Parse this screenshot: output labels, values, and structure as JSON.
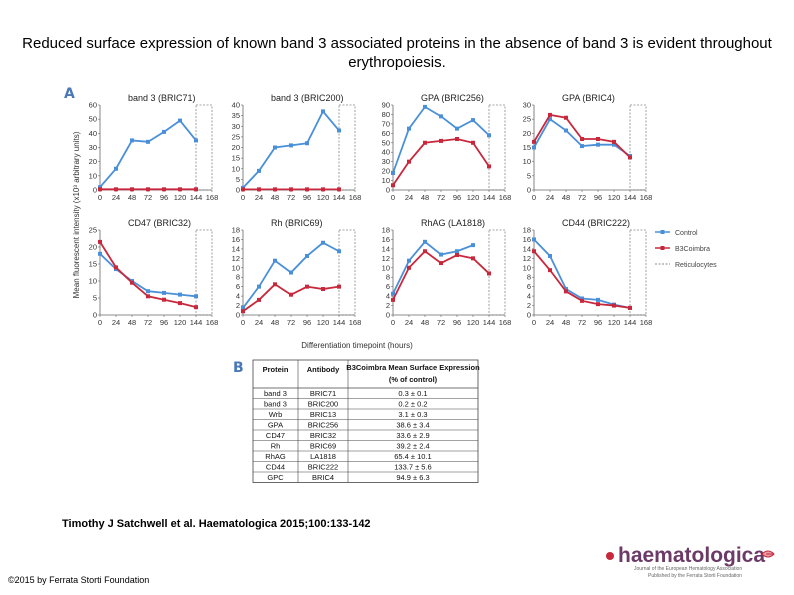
{
  "title": "Reduced surface expression of known band 3 associated proteins in the absence of band 3 is evident throughout erythropoiesis.",
  "citation": "Timothy J Satchwell et al. Haematologica 2015;100:133-142",
  "copyright": "©2015 by Ferrata Storti Foundation",
  "logo": {
    "text": "haematologica",
    "tagline_line1": "Journal of the European Hematology Association",
    "tagline_line2": "Published by the Ferrata Storti Foundation"
  },
  "colors": {
    "control": "#4a90d9",
    "b3coimbra": "#c8283c",
    "reticulocyte_box": "#888888",
    "panel_letter": "#4a77b8"
  },
  "panel_a_label": "A",
  "panel_b_label": "B",
  "chart_data": {
    "type": "line",
    "ylabel": "Mean fluorescent intensity (x10³ arbitrary units)",
    "xlabel": "Differentiation timepoint (hours)",
    "x": [
      0,
      24,
      48,
      72,
      96,
      120,
      144
    ],
    "xticks": [
      "0",
      "24",
      "48",
      "72",
      "96",
      "120",
      "144",
      "168"
    ],
    "legend": {
      "position": "right",
      "entries": [
        "Control",
        "B3Coimbra",
        "Reticulocytes"
      ]
    },
    "panels": [
      {
        "title": "band 3 (BRIC71)",
        "ylim": [
          0,
          60
        ],
        "yticks": [
          0,
          10,
          20,
          30,
          40,
          50,
          60
        ],
        "series": [
          {
            "name": "Control",
            "values": [
              2,
              15,
              35,
              34,
              41,
              49,
              35
            ]
          },
          {
            "name": "B3Coimbra",
            "values": [
              0.5,
              0.5,
              0.5,
              0.5,
              0.5,
              0.5,
              0.5
            ]
          }
        ]
      },
      {
        "title": "band 3 (BRIC200)",
        "ylim": [
          0,
          40
        ],
        "yticks": [
          0,
          5,
          10,
          15,
          20,
          25,
          30,
          35,
          40
        ],
        "series": [
          {
            "name": "Control",
            "values": [
              1,
              9,
              20,
              21,
              22,
              37,
              28
            ]
          },
          {
            "name": "B3Coimbra",
            "values": [
              0.3,
              0.3,
              0.3,
              0.3,
              0.3,
              0.3,
              0.3
            ]
          }
        ]
      },
      {
        "title": "GPA (BRIC256)",
        "ylim": [
          0,
          90
        ],
        "yticks": [
          0,
          10,
          20,
          30,
          40,
          50,
          60,
          70,
          80,
          90
        ],
        "series": [
          {
            "name": "Control",
            "values": [
              18,
              65,
              88,
              78,
              65,
              74,
              58
            ]
          },
          {
            "name": "B3Coimbra",
            "values": [
              5,
              30,
              50,
              52,
              54,
              50,
              25
            ]
          }
        ]
      },
      {
        "title": "GPA (BRIC4)",
        "ylim": [
          0,
          30
        ],
        "yticks": [
          0,
          5,
          10,
          15,
          20,
          25,
          30
        ],
        "series": [
          {
            "name": "Control",
            "values": [
              15,
              25,
              21,
              15.5,
              16,
              16,
              12
            ]
          },
          {
            "name": "B3Coimbra",
            "values": [
              17,
              26.5,
              25.5,
              18,
              18,
              17,
              11.5
            ]
          }
        ]
      },
      {
        "title": "CD47 (BRIC32)",
        "ylim": [
          0,
          25
        ],
        "yticks": [
          0,
          5,
          10,
          15,
          20,
          25
        ],
        "series": [
          {
            "name": "Control",
            "values": [
              18,
              13.5,
              10,
              7,
              6.5,
              6,
              5.5
            ]
          },
          {
            "name": "B3Coimbra",
            "values": [
              21.5,
              14,
              9.5,
              5.5,
              4.5,
              3.5,
              2.3
            ]
          }
        ]
      },
      {
        "title": "Rh (BRIC69)",
        "ylim": [
          0,
          18
        ],
        "yticks": [
          0,
          2,
          4,
          6,
          8,
          10,
          12,
          14,
          16,
          18
        ],
        "series": [
          {
            "name": "Control",
            "values": [
              1.5,
              6,
              11.5,
              9,
              12.5,
              15.3,
              13.5
            ]
          },
          {
            "name": "B3Coimbra",
            "values": [
              0.8,
              3.2,
              6.5,
              4.3,
              6,
              5.5,
              6
            ]
          }
        ]
      },
      {
        "title": "RhAG (LA1818)",
        "ylim": [
          0,
          18
        ],
        "yticks": [
          0,
          2,
          4,
          6,
          8,
          10,
          12,
          14,
          16,
          18
        ],
        "series": [
          {
            "name": "Control",
            "values": [
              4.5,
              11.5,
              15.5,
              12.8,
              13.5,
              14.8,
              null
            ]
          },
          {
            "name": "B3Coimbra",
            "values": [
              3.2,
              10,
              13.5,
              11,
              12.7,
              12,
              8.8
            ]
          }
        ]
      },
      {
        "title": "CD44 (BRIC222)",
        "ylim": [
          0,
          18
        ],
        "yticks": [
          0,
          2,
          4,
          6,
          8,
          10,
          12,
          14,
          16,
          18
        ],
        "series": [
          {
            "name": "Control",
            "values": [
              16,
              12.5,
              5.5,
              3.5,
              3.2,
              2.2,
              1.5
            ]
          },
          {
            "name": "B3Coimbra",
            "values": [
              13.5,
              9.5,
              5,
              3,
              2.3,
              2,
              1.5
            ]
          }
        ]
      }
    ]
  },
  "table": {
    "headers": [
      "Protein",
      "Antibody",
      "B3Coimbra Mean Surface Expression",
      "(% of control)"
    ],
    "rows": [
      [
        "band 3",
        "BRIC71",
        "0.3 ± 0.1"
      ],
      [
        "band 3",
        "BRIC200",
        "0.2 ± 0.2"
      ],
      [
        "Wrb",
        "BRIC13",
        "3.1 ± 0.3"
      ],
      [
        "GPA",
        "BRIC256",
        "38.6 ± 3.4"
      ],
      [
        "CD47",
        "BRIC32",
        "33.6 ± 2.9"
      ],
      [
        "Rh",
        "BRIC69",
        "39.2 ± 2.4"
      ],
      [
        "RhAG",
        "LA1818",
        "65.4 ± 10.1"
      ],
      [
        "CD44",
        "BRIC222",
        "133.7 ± 5.6"
      ],
      [
        "GPC",
        "BRIC4",
        "94.9 ± 6.3"
      ]
    ]
  }
}
